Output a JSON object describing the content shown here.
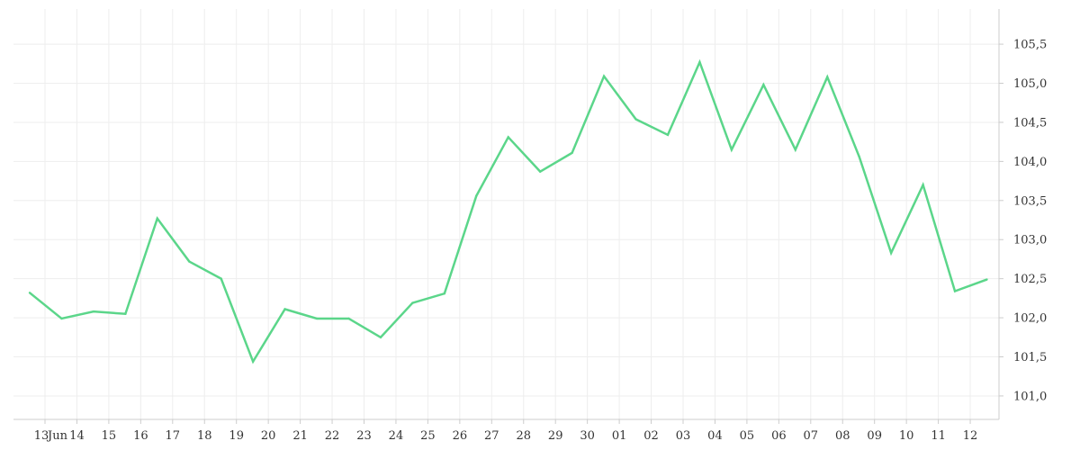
{
  "chart_data": {
    "type": "line",
    "title": "",
    "xlabel": "",
    "ylabel": "",
    "grid": true,
    "legend": "none",
    "colors": {
      "line": "#5bd68a",
      "grid": "#eeeeee",
      "axis": "#cccccc",
      "text": "#333333"
    },
    "x_ticks": [
      "13",
      "14",
      "15",
      "16",
      "17",
      "18",
      "19",
      "20",
      "21",
      "22",
      "23",
      "24",
      "25",
      "26",
      "27",
      "28",
      "29",
      "30",
      "01",
      "02",
      "03",
      "04",
      "05",
      "06",
      "07",
      "08",
      "09",
      "10",
      "11",
      "12"
    ],
    "x_month_label": "Jun",
    "y_ticks": [
      "101,0",
      "101,5",
      "102,0",
      "102,5",
      "103,0",
      "103,5",
      "104,0",
      "104,5",
      "105,0",
      "105,5"
    ],
    "y_tick_values": [
      101.0,
      101.5,
      102.0,
      102.5,
      103.0,
      103.5,
      104.0,
      104.5,
      105.0,
      105.5
    ],
    "ylim": [
      100.7,
      105.95
    ],
    "series": [
      {
        "values": [
          102.32,
          101.99,
          102.08,
          102.05,
          103.27,
          102.72,
          102.5,
          101.44,
          102.11,
          101.99,
          101.99,
          101.75,
          102.19,
          102.31,
          103.56,
          104.31,
          103.87,
          104.11,
          105.09,
          104.54,
          104.34,
          105.27,
          104.15,
          104.98,
          104.15,
          105.08,
          104.06,
          102.83,
          103.7,
          102.34,
          102.49
        ]
      }
    ]
  }
}
